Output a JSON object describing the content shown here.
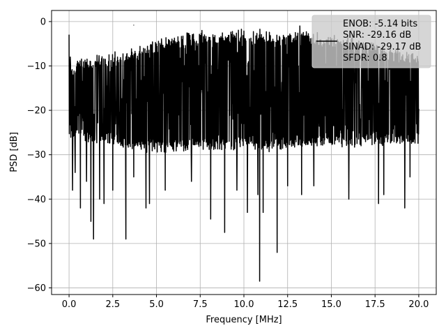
{
  "chart_data": {
    "type": "line",
    "xlabel": "Frequency [MHz]",
    "ylabel": "PSD [dB]",
    "xlim": [
      -1.0,
      21.0
    ],
    "ylim": [
      -61.5,
      2.5
    ],
    "grid": true,
    "x_ticks": [
      0.0,
      2.5,
      5.0,
      7.5,
      10.0,
      12.5,
      15.0,
      17.5,
      20.0
    ],
    "x_tick_labels": [
      "0.0",
      "2.5",
      "5.0",
      "7.5",
      "10.0",
      "12.5",
      "15.0",
      "17.5",
      "20.0"
    ],
    "y_ticks": [
      0,
      -10,
      -20,
      -30,
      -40,
      -50,
      -60
    ],
    "y_tick_labels": [
      "0",
      "−10",
      "−20",
      "−30",
      "−40",
      "−50",
      "−60"
    ],
    "legend": {
      "placement": "upper-right",
      "entries": [
        "ENOB: -5.14 bits",
        "SNR: -29.16 dB",
        "SINAD: -29.17 dB",
        "SFDR: 0.8"
      ]
    },
    "colors": {
      "line": "#000000",
      "grid": "#b0b0b0",
      "legend_bg": "#cccccc"
    },
    "series": [
      {
        "color": "#000000",
        "envelope": {
          "x": [
            0.0,
            0.15,
            0.5,
            1.0,
            1.5,
            2.0,
            2.5,
            3.0,
            3.5,
            4.0,
            4.5,
            5.0,
            5.5,
            6.0,
            6.5,
            7.0,
            7.5,
            8.0,
            8.5,
            9.0,
            9.5,
            10.0,
            10.5,
            11.0,
            11.5,
            12.0,
            12.5,
            13.0,
            13.5,
            14.0,
            14.5,
            15.0,
            15.5,
            16.0,
            16.5,
            17.0,
            17.5,
            18.0,
            18.5,
            19.0,
            19.5,
            20.0
          ],
          "top": [
            -9,
            -11,
            -9.5,
            -9,
            -8.5,
            -8.5,
            -8,
            -7.5,
            -7,
            -6.5,
            -5.5,
            -5,
            -4.5,
            -4,
            -4,
            -3.5,
            -3.5,
            -3.5,
            -3.5,
            -3,
            -3,
            -3,
            -3,
            -3,
            -3.5,
            -3.5,
            -3.5,
            -3.5,
            -3.5,
            -4,
            -4,
            -4,
            -4.5,
            -4.5,
            -5,
            -5.5,
            -6,
            -6.5,
            -7,
            -7.5,
            -8,
            -8.5
          ],
          "bottom": [
            -27,
            -26.5,
            -26,
            -26.5,
            -27,
            -27,
            -27,
            -28,
            -28,
            -28,
            -28.5,
            -28.5,
            -28.5,
            -28.5,
            -28.5,
            -28.5,
            -28.5,
            -28,
            -28,
            -28,
            -28,
            -28,
            -28,
            -28.5,
            -28.5,
            -28,
            -28,
            -28,
            -28,
            -28,
            -27.5,
            -27.5,
            -27.5,
            -27.5,
            -27.5,
            -27,
            -27,
            -27,
            -27,
            -27,
            -27,
            -26.5
          ]
        },
        "peaks": [
          {
            "x": 0.0,
            "y": -3
          },
          {
            "x": 0.07,
            "y": -8
          },
          {
            "x": 3.7,
            "y": -0.8
          },
          {
            "x": 7.6,
            "y": -2
          },
          {
            "x": 13.2,
            "y": -1
          },
          {
            "x": 14.2,
            "y": -2.5
          },
          {
            "x": 16.2,
            "y": -3
          }
        ],
        "dips": [
          {
            "x": 0.2,
            "y": -38
          },
          {
            "x": 0.35,
            "y": -34
          },
          {
            "x": 0.65,
            "y": -42
          },
          {
            "x": 1.0,
            "y": -36
          },
          {
            "x": 1.25,
            "y": -45
          },
          {
            "x": 1.4,
            "y": -49
          },
          {
            "x": 1.75,
            "y": -40
          },
          {
            "x": 2.0,
            "y": -41
          },
          {
            "x": 2.5,
            "y": -38
          },
          {
            "x": 3.25,
            "y": -49
          },
          {
            "x": 3.7,
            "y": -35
          },
          {
            "x": 4.4,
            "y": -42
          },
          {
            "x": 4.6,
            "y": -41
          },
          {
            "x": 5.5,
            "y": -38
          },
          {
            "x": 7.0,
            "y": -36
          },
          {
            "x": 8.1,
            "y": -44.5
          },
          {
            "x": 8.9,
            "y": -47.5
          },
          {
            "x": 9.6,
            "y": -38
          },
          {
            "x": 10.2,
            "y": -43
          },
          {
            "x": 10.8,
            "y": -39
          },
          {
            "x": 10.9,
            "y": -58.5
          },
          {
            "x": 11.1,
            "y": -43
          },
          {
            "x": 11.9,
            "y": -52
          },
          {
            "x": 12.5,
            "y": -37
          },
          {
            "x": 13.3,
            "y": -39
          },
          {
            "x": 14.0,
            "y": -37
          },
          {
            "x": 16.0,
            "y": -40
          },
          {
            "x": 17.7,
            "y": -41
          },
          {
            "x": 18.0,
            "y": -39
          },
          {
            "x": 19.2,
            "y": -42
          },
          {
            "x": 19.5,
            "y": -35
          }
        ]
      }
    ]
  }
}
